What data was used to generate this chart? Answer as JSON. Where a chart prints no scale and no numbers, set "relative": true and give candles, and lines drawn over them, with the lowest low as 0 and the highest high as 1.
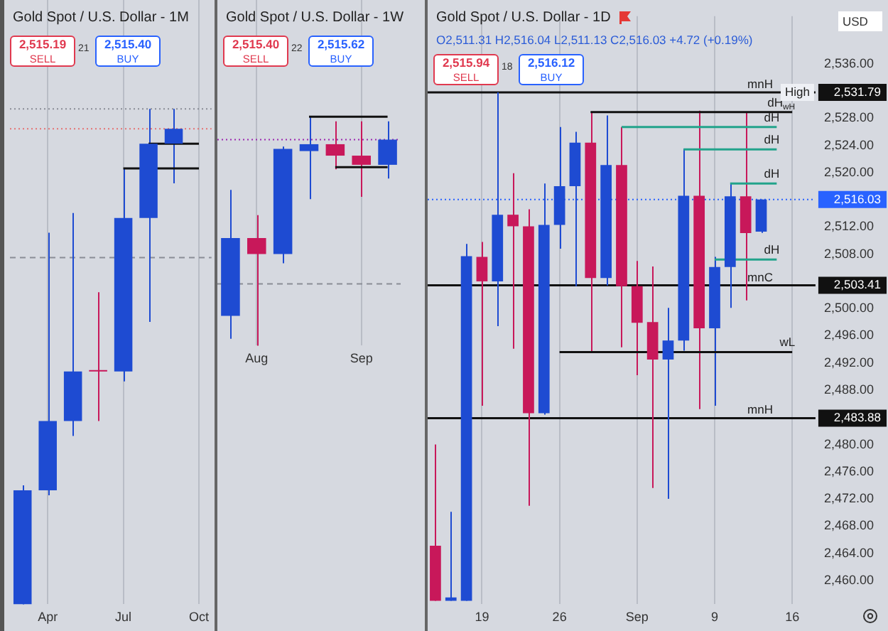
{
  "chart_data": [
    {
      "type": "candlestick",
      "title": "Gold Spot / U.S. Dollar - 1M",
      "relative": true,
      "grid": "x",
      "tick_labels": "x",
      "categories": [
        null,
        "Apr",
        null,
        null,
        "Jul",
        null,
        null,
        "Oct"
      ],
      "ohlc": [
        [
          0,
          0.24,
          0,
          0.23
        ],
        [
          0.23,
          0.75,
          0.22,
          0.37
        ],
        [
          0.37,
          0.79,
          0.34,
          0.47
        ],
        [
          0.47,
          0.63,
          0.37,
          0.47
        ],
        [
          0.47,
          0.88,
          0.45,
          0.78
        ],
        [
          0.78,
          1,
          0.57,
          0.93
        ],
        [
          0.93,
          1,
          0.85,
          0.96
        ],
        null
      ],
      "colors": [
        "#1e4bd2",
        "#1e4bd2",
        "#1e4bd2",
        "#c8185a",
        "#1e4bd2",
        "#1e4bd2",
        "#1e4bd2",
        "#1e4bd2"
      ],
      "series": [
        {
          "type": "line",
          "color": "#111111",
          "values": [
            null,
            null,
            null,
            null,
            null,
            0.93,
            0.93,
            0.93
          ]
        },
        {
          "type": "line",
          "color": "#111111",
          "values": [
            null,
            null,
            null,
            null,
            0.88,
            null,
            0.88,
            0.88
          ]
        }
      ],
      "ref_lines": [
        {
          "axis": "y",
          "value": 1,
          "color": "#8a8d96",
          "line_style": "dotted"
        },
        {
          "axis": "y",
          "value": 0.96,
          "color": "#e57373",
          "line_style": "dotted"
        },
        {
          "axis": "y",
          "value": 0.7,
          "color": "#8a8d96",
          "line_style": "dashed"
        }
      ],
      "annotations": [
        "2,515.19",
        "SELL",
        "21",
        "2,515.40",
        "BUY"
      ]
    },
    {
      "type": "candlestick",
      "title": "Gold Spot / U.S. Dollar - 1W",
      "relative": true,
      "grid": "x",
      "tick_labels": "x",
      "categories": [
        null,
        "Aug",
        null,
        null,
        null,
        "Sep",
        null
      ],
      "ohlc": [
        [
          0.13,
          0.68,
          0.03,
          0.47
        ],
        [
          0.47,
          0.57,
          0,
          0.4
        ],
        [
          0.4,
          0.87,
          0.36,
          0.86
        ],
        [
          0.85,
          1,
          0.64,
          0.88
        ],
        [
          0.88,
          0.98,
          0.77,
          0.83
        ],
        [
          0.83,
          0.98,
          0.65,
          0.79
        ],
        [
          0.79,
          0.98,
          0.73,
          0.9
        ]
      ],
      "colors": [
        "#1e4bd2",
        "#c8185a",
        "#1e4bd2",
        "#1e4bd2",
        "#c8185a",
        "#c8185a",
        "#1e4bd2"
      ],
      "series": [
        {
          "type": "line",
          "color": "#111111",
          "values": [
            null,
            null,
            null,
            1,
            1,
            1,
            1
          ]
        },
        {
          "type": "line",
          "color": "#111111",
          "values": [
            null,
            null,
            null,
            null,
            0.78,
            0.78,
            0.78
          ]
        }
      ],
      "ref_lines": [
        {
          "axis": "y",
          "value": 0.9,
          "color": "#9c27b0",
          "line_style": "dotted"
        },
        {
          "axis": "y",
          "value": 0.27,
          "color": "#8a8d96",
          "line_style": "dashed"
        }
      ],
      "annotations": [
        "2,515.40",
        "SELL",
        "22",
        "2,515.62",
        "BUY"
      ]
    },
    {
      "type": "candlestick",
      "title": "Gold Spot / U.S. Dollar - 1D",
      "grid": "x",
      "categories": [
        null,
        null,
        null,
        "19",
        null,
        null,
        null,
        null,
        "26",
        null,
        null,
        null,
        null,
        "Sep",
        null,
        null,
        null,
        null,
        "9",
        null,
        null,
        null,
        null,
        "16",
        null
      ],
      "ohlc": [
        [
          2465.1,
          2480,
          2457,
          2457
        ],
        [
          2457,
          2470.1,
          2457,
          2457.5
        ],
        [
          2457,
          2509.5,
          2457,
          2507.7
        ],
        [
          2507.6,
          2509.8,
          2485.7,
          2504
        ],
        [
          2504,
          2531.8,
          2497.4,
          2513.8
        ],
        [
          2513.8,
          2519.9,
          2494.1,
          2512.1
        ],
        [
          2512.1,
          2514.6,
          2471,
          2484.6
        ],
        [
          2484.6,
          2518.4,
          2484.4,
          2512.3
        ],
        [
          2512.3,
          2526.7,
          2508.8,
          2518
        ],
        [
          2518,
          2526,
          2503.3,
          2524.4
        ],
        [
          2524.4,
          2528.9,
          2493.6,
          2504.5
        ],
        [
          2504.5,
          2528.4,
          2503.4,
          2521.1
        ],
        [
          2521.1,
          2526.7,
          2494.3,
          2503.3
        ],
        [
          2503.3,
          2507,
          2490.2,
          2497.9
        ],
        [
          2498,
          2506.2,
          2473.6,
          2492.5
        ],
        [
          2492.5,
          2500.1,
          2472,
          2495.3
        ],
        [
          2495.3,
          2523.5,
          2493.8,
          2516.6
        ],
        [
          2516.6,
          2529.1,
          2485.2,
          2497.1
        ],
        [
          2497.1,
          2507.6,
          2485.7,
          2506.1
        ],
        [
          2506.1,
          2518.4,
          2500.1,
          2516.5
        ],
        [
          2516.5,
          2528.9,
          2501.2,
          2511.1
        ],
        [
          2511.31,
          2516.04,
          2511.13,
          2516.03
        ],
        null,
        null,
        null
      ],
      "colors": [
        "#c8185a",
        "#1e4bd2",
        "#1e4bd2",
        "#c8185a",
        "#1e4bd2",
        "#c8185a",
        "#c8185a",
        "#1e4bd2",
        "#1e4bd2",
        "#1e4bd2",
        "#c8185a",
        "#1e4bd2",
        "#c8185a",
        "#c8185a",
        "#c8185a",
        "#1e4bd2",
        "#1e4bd2",
        "#c8185a",
        "#1e4bd2",
        "#1e4bd2",
        "#c8185a",
        "#1e4bd2",
        "#1e4bd2",
        "#1e4bd2",
        "#1e4bd2"
      ],
      "series": [
        {
          "type": "line",
          "name": "dH$_{wH}$",
          "color": "#111111",
          "values": [
            null,
            null,
            null,
            null,
            null,
            null,
            null,
            null,
            null,
            null,
            2528.9,
            2528.9,
            2528.9,
            2528.9,
            2528.9,
            2528.9,
            2528.9,
            2528.9,
            2528.9,
            2528.9,
            2528.9,
            2528.9,
            2528.9,
            2528.9,
            null
          ]
        },
        {
          "type": "line",
          "name": "dH",
          "color": "#22a38b",
          "values": [
            null,
            null,
            null,
            null,
            null,
            null,
            null,
            null,
            null,
            null,
            null,
            null,
            2526.7,
            2526.7,
            2526.7,
            2526.7,
            2526.7,
            2526.7,
            2526.7,
            2526.7,
            2526.7,
            2526.7,
            2526.7,
            null,
            null
          ]
        },
        {
          "type": "line",
          "name": "dH",
          "color": "#22a38b",
          "values": [
            null,
            null,
            null,
            null,
            null,
            null,
            null,
            null,
            null,
            null,
            null,
            null,
            null,
            null,
            null,
            null,
            2523.4,
            2523.4,
            2523.4,
            2523.4,
            2523.4,
            2523.4,
            2523.4,
            null,
            null
          ]
        },
        {
          "type": "line",
          "name": "dH",
          "color": "#22a38b",
          "values": [
            null,
            null,
            null,
            null,
            null,
            null,
            null,
            null,
            null,
            null,
            null,
            null,
            null,
            null,
            null,
            null,
            null,
            null,
            null,
            2518.4,
            2518.4,
            2518.4,
            2518.4,
            null,
            null
          ]
        },
        {
          "type": "line",
          "name": "dH",
          "color": "#22a38b",
          "values": [
            null,
            null,
            null,
            null,
            null,
            null,
            null,
            null,
            null,
            null,
            null,
            null,
            null,
            null,
            null,
            null,
            null,
            null,
            2507.2,
            2507.2,
            2507.2,
            2507.2,
            2507.2,
            null,
            null
          ]
        },
        {
          "type": "line",
          "name": "wL",
          "color": "#111111",
          "values": [
            null,
            null,
            null,
            null,
            null,
            null,
            null,
            null,
            2493.6,
            2493.6,
            2493.6,
            2493.6,
            2493.6,
            2493.6,
            2493.6,
            2493.6,
            2493.6,
            2493.6,
            2493.6,
            2493.6,
            2493.6,
            2493.6,
            2493.6,
            2493.6,
            null
          ]
        }
      ],
      "ref_lines": [
        {
          "axis": "y",
          "value": 2531.79,
          "label": "mnH",
          "color": "#111111"
        },
        {
          "axis": "y",
          "value": 2503.41,
          "label": "mnC",
          "color": "#111111"
        },
        {
          "axis": "y",
          "value": 2483.88,
          "label": "mnH",
          "color": "#111111"
        },
        {
          "axis": "y",
          "value": 2516.03,
          "color": "#2962ff",
          "line_style": "dotted"
        }
      ],
      "ylim": [
        2456.5,
        2543
      ],
      "yticks": [
        {
          "value": 2460,
          "label": "2,460.00"
        },
        {
          "value": 2464,
          "label": "2,464.00"
        },
        {
          "value": 2468,
          "label": "2,468.00"
        },
        {
          "value": 2472,
          "label": "2,472.00"
        },
        {
          "value": 2476,
          "label": "2,476.00"
        },
        {
          "value": 2480,
          "label": "2,480.00"
        },
        {
          "value": 2488,
          "label": "2,488.00"
        },
        {
          "value": 2492,
          "label": "2,492.00"
        },
        {
          "value": 2496,
          "label": "2,496.00"
        },
        {
          "value": 2500,
          "label": "2,500.00"
        },
        {
          "value": 2508,
          "label": "2,508.00"
        },
        {
          "value": 2512,
          "label": "2,512.00"
        },
        {
          "value": 2520,
          "label": "2,520.00"
        },
        {
          "value": 2524,
          "label": "2,524.00"
        },
        {
          "value": 2528,
          "label": "2,528.00"
        },
        {
          "value": 2536,
          "label": "2,536.00"
        }
      ],
      "annotations": [
        "2,515.94",
        "SELL",
        "18",
        "2,516.12",
        "BUY",
        "O2,511.31 H2,516.04 L2,511.13 C2,516.03 +4.72 (+0.19%)",
        "USD",
        "High",
        "2,531.79",
        "2,503.41",
        "2,483.88",
        "2,516.03"
      ]
    }
  ]
}
